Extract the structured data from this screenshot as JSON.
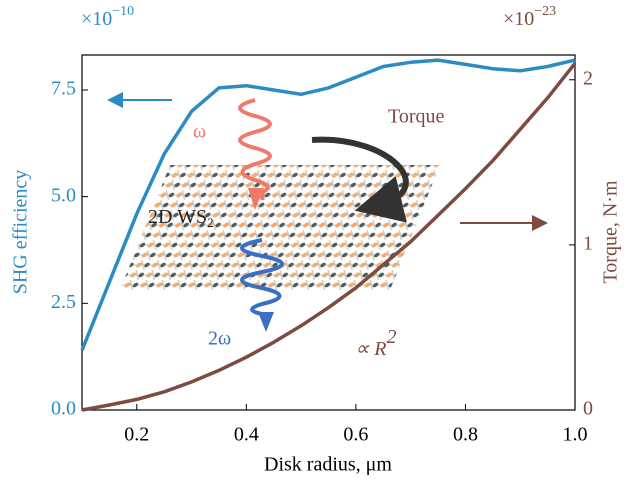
{
  "chart_data": {
    "type": "line",
    "x_label": "Disk radius, μm",
    "y_label": "SHG efficiency",
    "y2_label": "Torque, N·m",
    "y_scale": {
      "base": "×10",
      "exponent": "−10"
    },
    "y2_scale": {
      "base": "×10",
      "exponent": "−23"
    },
    "x": [
      0.1,
      0.15,
      0.2,
      0.25,
      0.3,
      0.35,
      0.4,
      0.45,
      0.5,
      0.55,
      0.6,
      0.65,
      0.7,
      0.75,
      0.8,
      0.85,
      0.9,
      0.95,
      1.0
    ],
    "series": [
      {
        "name": "SHG efficiency",
        "color": "#2b8cc4",
        "axis": "y",
        "values": [
          1.4,
          3.0,
          4.6,
          6.0,
          7.0,
          7.55,
          7.6,
          7.5,
          7.4,
          7.55,
          7.8,
          8.05,
          8.15,
          8.2,
          8.1,
          8.0,
          7.95,
          8.05,
          8.2
        ]
      },
      {
        "name": "Torque",
        "color": "#7d4b40",
        "axis": "y2",
        "values": [
          0,
          0.03,
          0.064,
          0.11,
          0.17,
          0.24,
          0.32,
          0.41,
          0.51,
          0.62,
          0.74,
          0.88,
          1.02,
          1.18,
          1.34,
          1.51,
          1.7,
          1.89,
          2.1
        ]
      }
    ],
    "xlim": [
      0.1,
      1.0
    ],
    "xticks": [
      0.2,
      0.4,
      0.6,
      0.8,
      {
        "value": 1.0,
        "label": "1.0"
      }
    ],
    "ylim": [
      0,
      8.32
    ],
    "yticks": [
      {
        "value": 0,
        "label": "0.0"
      },
      2.5,
      {
        "value": 5,
        "label": "5.0"
      },
      7.5
    ],
    "y2lim": [
      0,
      2.15
    ],
    "y2ticks": [
      0,
      1,
      2
    ],
    "annotations": {
      "omega": "ω",
      "two_omega": "2ω",
      "torque": "Torque",
      "material": {
        "text": "2D WS",
        "subscript": "2"
      },
      "scaling": {
        "text": "∝ R",
        "superscript": "2"
      }
    }
  }
}
